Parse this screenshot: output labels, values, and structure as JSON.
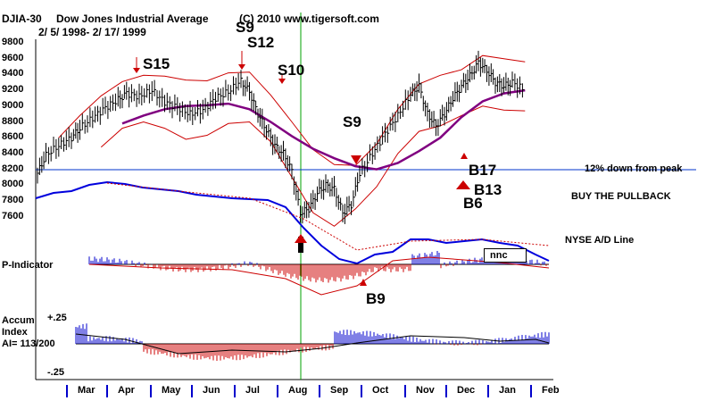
{
  "header": {
    "symbol": "DJIA-30",
    "name": "Dow Jones Industrial Average",
    "range": "2/ 5/ 1998-  2/ 17/ 1999",
    "copyright": "(C) 2010 www.tigersoft.com"
  },
  "signals": {
    "s9a": "S9",
    "s12": "S12",
    "s15": "S15",
    "s10": "S10",
    "s9b": "S9",
    "b17": "B17",
    "b13": "B13",
    "b6": "B6",
    "b9": "B9"
  },
  "notes": {
    "peak_line": "12% down from peak",
    "buy_pullback": "BUY THE PULLBACK",
    "ad_line": "NYSE A/D Line",
    "nnc": "nnc"
  },
  "panels": {
    "p_indicator": "P-Indicator",
    "accum_1": "Accum",
    "accum_2": "Index",
    "accum_3": "AI= 113/200",
    "accum_top": "+.25",
    "accum_bottom": "-.25"
  },
  "chart_data": {
    "type": "line",
    "title": "DJIA-30 Dow Jones Industrial Average",
    "y_axis": {
      "ticks": [
        7600,
        7800,
        8000,
        8200,
        8400,
        8600,
        8800,
        9000,
        9200,
        9400,
        9600,
        9800
      ],
      "ylim": [
        7400,
        9800
      ]
    },
    "months": [
      "Mar",
      "Apr",
      "May",
      "Jun",
      "Jul",
      "Aug",
      "Sep",
      "Oct",
      "Nov",
      "Dec",
      "Jan",
      "Feb"
    ],
    "price_close": [
      {
        "x": 0.0,
        "y": 8150
      },
      {
        "x": 0.2,
        "y": 8380
      },
      {
        "x": 0.5,
        "y": 8500
      },
      {
        "x": 0.8,
        "y": 8600
      },
      {
        "x": 1.0,
        "y": 8720
      },
      {
        "x": 1.3,
        "y": 8850
      },
      {
        "x": 1.6,
        "y": 8980
      },
      {
        "x": 1.9,
        "y": 9080
      },
      {
        "x": 2.1,
        "y": 9160
      },
      {
        "x": 2.4,
        "y": 9120
      },
      {
        "x": 2.7,
        "y": 9200
      },
      {
        "x": 3.0,
        "y": 9050
      },
      {
        "x": 3.3,
        "y": 8980
      },
      {
        "x": 3.6,
        "y": 8900
      },
      {
        "x": 3.9,
        "y": 8950
      },
      {
        "x": 4.2,
        "y": 9100
      },
      {
        "x": 4.5,
        "y": 9180
      },
      {
        "x": 4.8,
        "y": 9320
      },
      {
        "x": 5.0,
        "y": 9180
      },
      {
        "x": 5.2,
        "y": 8900
      },
      {
        "x": 5.4,
        "y": 8700
      },
      {
        "x": 5.6,
        "y": 8500
      },
      {
        "x": 5.8,
        "y": 8400
      },
      {
        "x": 6.0,
        "y": 8180
      },
      {
        "x": 6.2,
        "y": 7650
      },
      {
        "x": 6.4,
        "y": 7700
      },
      {
        "x": 6.6,
        "y": 7900
      },
      {
        "x": 6.8,
        "y": 8000
      },
      {
        "x": 7.0,
        "y": 7950
      },
      {
        "x": 7.2,
        "y": 7650
      },
      {
        "x": 7.4,
        "y": 7750
      },
      {
        "x": 7.6,
        "y": 8150
      },
      {
        "x": 7.9,
        "y": 8400
      },
      {
        "x": 8.2,
        "y": 8650
      },
      {
        "x": 8.5,
        "y": 8880
      },
      {
        "x": 8.8,
        "y": 9150
      },
      {
        "x": 9.0,
        "y": 9250
      },
      {
        "x": 9.2,
        "y": 8900
      },
      {
        "x": 9.4,
        "y": 8750
      },
      {
        "x": 9.6,
        "y": 8900
      },
      {
        "x": 9.8,
        "y": 9100
      },
      {
        "x": 10.0,
        "y": 9250
      },
      {
        "x": 10.2,
        "y": 9380
      },
      {
        "x": 10.4,
        "y": 9550
      },
      {
        "x": 10.6,
        "y": 9450
      },
      {
        "x": 10.8,
        "y": 9300
      },
      {
        "x": 11.0,
        "y": 9250
      },
      {
        "x": 11.2,
        "y": 9300
      },
      {
        "x": 11.5,
        "y": 9200
      }
    ],
    "moving_average": [
      {
        "x": 2.0,
        "y": 8780
      },
      {
        "x": 2.5,
        "y": 8880
      },
      {
        "x": 3.0,
        "y": 8960
      },
      {
        "x": 3.5,
        "y": 9000
      },
      {
        "x": 4.0,
        "y": 9010
      },
      {
        "x": 4.5,
        "y": 9030
      },
      {
        "x": 5.0,
        "y": 8960
      },
      {
        "x": 5.5,
        "y": 8800
      },
      {
        "x": 6.0,
        "y": 8620
      },
      {
        "x": 6.5,
        "y": 8460
      },
      {
        "x": 7.0,
        "y": 8340
      },
      {
        "x": 7.5,
        "y": 8240
      },
      {
        "x": 8.0,
        "y": 8200
      },
      {
        "x": 8.5,
        "y": 8280
      },
      {
        "x": 9.0,
        "y": 8430
      },
      {
        "x": 9.5,
        "y": 8600
      },
      {
        "x": 10.0,
        "y": 8860
      },
      {
        "x": 10.5,
        "y": 9060
      },
      {
        "x": 11.0,
        "y": 9160
      },
      {
        "x": 11.5,
        "y": 9200
      }
    ],
    "upper_band": [
      {
        "x": 0.5,
        "y": 8600
      },
      {
        "x": 1.0,
        "y": 8880
      },
      {
        "x": 1.5,
        "y": 9130
      },
      {
        "x": 2.0,
        "y": 9310
      },
      {
        "x": 2.5,
        "y": 9390
      },
      {
        "x": 3.0,
        "y": 9380
      },
      {
        "x": 3.5,
        "y": 9330
      },
      {
        "x": 4.0,
        "y": 9320
      },
      {
        "x": 4.5,
        "y": 9420
      },
      {
        "x": 5.0,
        "y": 9430
      },
      {
        "x": 5.5,
        "y": 9140
      },
      {
        "x": 6.0,
        "y": 8800
      },
      {
        "x": 6.5,
        "y": 8450
      },
      {
        "x": 7.0,
        "y": 8260
      },
      {
        "x": 7.5,
        "y": 8250
      },
      {
        "x": 8.0,
        "y": 8520
      },
      {
        "x": 8.5,
        "y": 8960
      },
      {
        "x": 9.0,
        "y": 9280
      },
      {
        "x": 9.5,
        "y": 9390
      },
      {
        "x": 10.0,
        "y": 9460
      },
      {
        "x": 10.5,
        "y": 9640
      },
      {
        "x": 11.0,
        "y": 9600
      },
      {
        "x": 11.5,
        "y": 9560
      }
    ],
    "lower_band": [
      {
        "x": 1.5,
        "y": 8480
      },
      {
        "x": 2.0,
        "y": 8720
      },
      {
        "x": 2.5,
        "y": 8800
      },
      {
        "x": 3.0,
        "y": 8720
      },
      {
        "x": 3.5,
        "y": 8580
      },
      {
        "x": 4.0,
        "y": 8630
      },
      {
        "x": 4.5,
        "y": 8780
      },
      {
        "x": 5.0,
        "y": 8800
      },
      {
        "x": 5.5,
        "y": 8550
      },
      {
        "x": 6.0,
        "y": 8100
      },
      {
        "x": 6.5,
        "y": 7650
      },
      {
        "x": 7.0,
        "y": 7480
      },
      {
        "x": 7.5,
        "y": 7700
      },
      {
        "x": 8.0,
        "y": 7980
      },
      {
        "x": 8.5,
        "y": 8400
      },
      {
        "x": 9.0,
        "y": 8680
      },
      {
        "x": 9.5,
        "y": 8750
      },
      {
        "x": 10.0,
        "y": 8880
      },
      {
        "x": 10.5,
        "y": 9000
      },
      {
        "x": 11.0,
        "y": 8950
      },
      {
        "x": 11.5,
        "y": 8940
      }
    ],
    "horizontal_line": {
      "y": 8220,
      "label": "12% down from peak"
    }
  }
}
